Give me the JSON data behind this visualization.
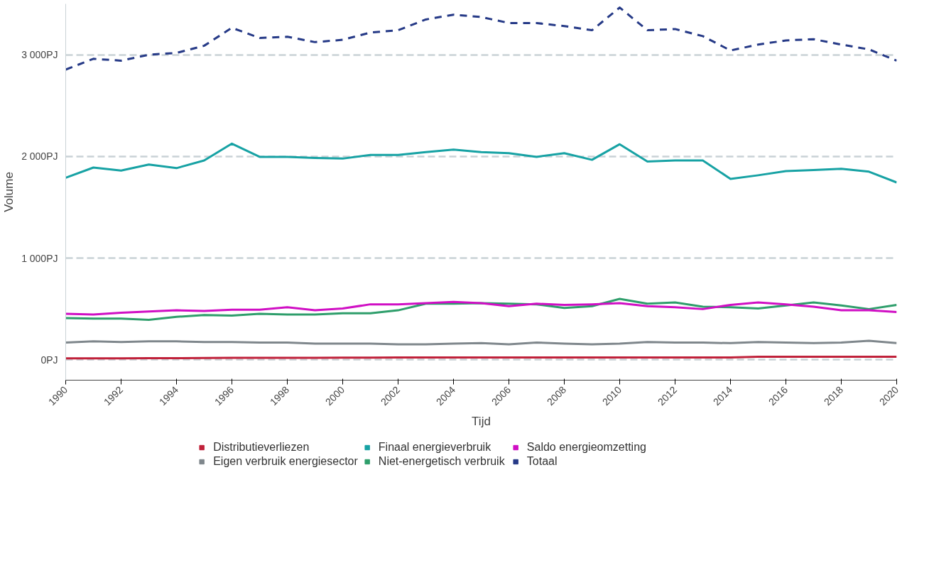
{
  "chart_data": {
    "type": "line",
    "xlabel": "Tijd",
    "ylabel": "Volume",
    "x": [
      1990,
      1991,
      1992,
      1993,
      1994,
      1995,
      1996,
      1997,
      1998,
      1999,
      2000,
      2001,
      2002,
      2003,
      2004,
      2005,
      2006,
      2007,
      2008,
      2009,
      2010,
      2011,
      2012,
      2013,
      2014,
      2015,
      2016,
      2017,
      2018,
      2019,
      2020
    ],
    "xlim": [
      1990,
      2020
    ],
    "xticks": [
      1990,
      1992,
      1994,
      1996,
      1998,
      2000,
      2002,
      2004,
      2006,
      2008,
      2010,
      2012,
      2014,
      2016,
      2018,
      2020
    ],
    "ylim": [
      -200,
      3500
    ],
    "yticks": [
      {
        "value": 0,
        "label": "0PJ"
      },
      {
        "value": 1000,
        "label": "1 000PJ"
      },
      {
        "value": 2000,
        "label": "2 000PJ"
      },
      {
        "value": 3000,
        "label": "3 000PJ"
      }
    ],
    "grid": "y",
    "legend": "bottom",
    "line_style": "solid",
    "marker": "none",
    "series": [
      {
        "name": "Distributieverliezen",
        "color": "#c0213a",
        "values": [
          15,
          15,
          15,
          17,
          17,
          18,
          20,
          20,
          20,
          20,
          22,
          22,
          24,
          24,
          24,
          24,
          24,
          24,
          24,
          24,
          24,
          24,
          24,
          24,
          24,
          30,
          30,
          30,
          30,
          30,
          30
        ]
      },
      {
        "name": "Eigen verbruik energiesector",
        "color": "#7f878c",
        "values": [
          170,
          182,
          176,
          182,
          182,
          176,
          176,
          170,
          170,
          159,
          159,
          159,
          153,
          153,
          159,
          164,
          153,
          170,
          159,
          153,
          159,
          176,
          170,
          170,
          164,
          176,
          170,
          164,
          170,
          188,
          164
        ]
      },
      {
        "name": "Finaal energieverbruik",
        "color": "#17a2a4",
        "values": [
          1791,
          1891,
          1861,
          1920,
          1885,
          1961,
          2126,
          1996,
          1996,
          1985,
          1979,
          2014,
          2014,
          2043,
          2067,
          2043,
          2032,
          1996,
          2032,
          1967,
          2120,
          1950,
          1961,
          1961,
          1779,
          1815,
          1856,
          1867,
          1879,
          1850,
          1744
        ]
      },
      {
        "name": "Niet-energetisch verbruik",
        "color": "#2e9e6b",
        "values": [
          411,
          405,
          405,
          393,
          423,
          440,
          435,
          452,
          446,
          446,
          458,
          458,
          487,
          552,
          552,
          558,
          552,
          546,
          511,
          528,
          599,
          552,
          564,
          523,
          517,
          505,
          534,
          564,
          534,
          499,
          540
        ]
      },
      {
        "name": "Saldo energieomzetting",
        "color": "#d00fc4",
        "values": [
          452,
          446,
          464,
          476,
          487,
          481,
          493,
          493,
          517,
          487,
          505,
          546,
          546,
          558,
          570,
          558,
          528,
          552,
          540,
          546,
          558,
          528,
          517,
          499,
          540,
          564,
          546,
          523,
          487,
          487,
          470
        ]
      },
      {
        "name": "Totaal",
        "color": "#263a87",
        "line_style": "dashed",
        "values": [
          2854,
          2960,
          2942,
          3000,
          3018,
          3089,
          3265,
          3165,
          3177,
          3124,
          3147,
          3218,
          3241,
          3347,
          3394,
          3371,
          3312,
          3312,
          3282,
          3241,
          3464,
          3241,
          3253,
          3183,
          3042,
          3100,
          3141,
          3153,
          3100,
          3053,
          2942
        ]
      }
    ]
  }
}
